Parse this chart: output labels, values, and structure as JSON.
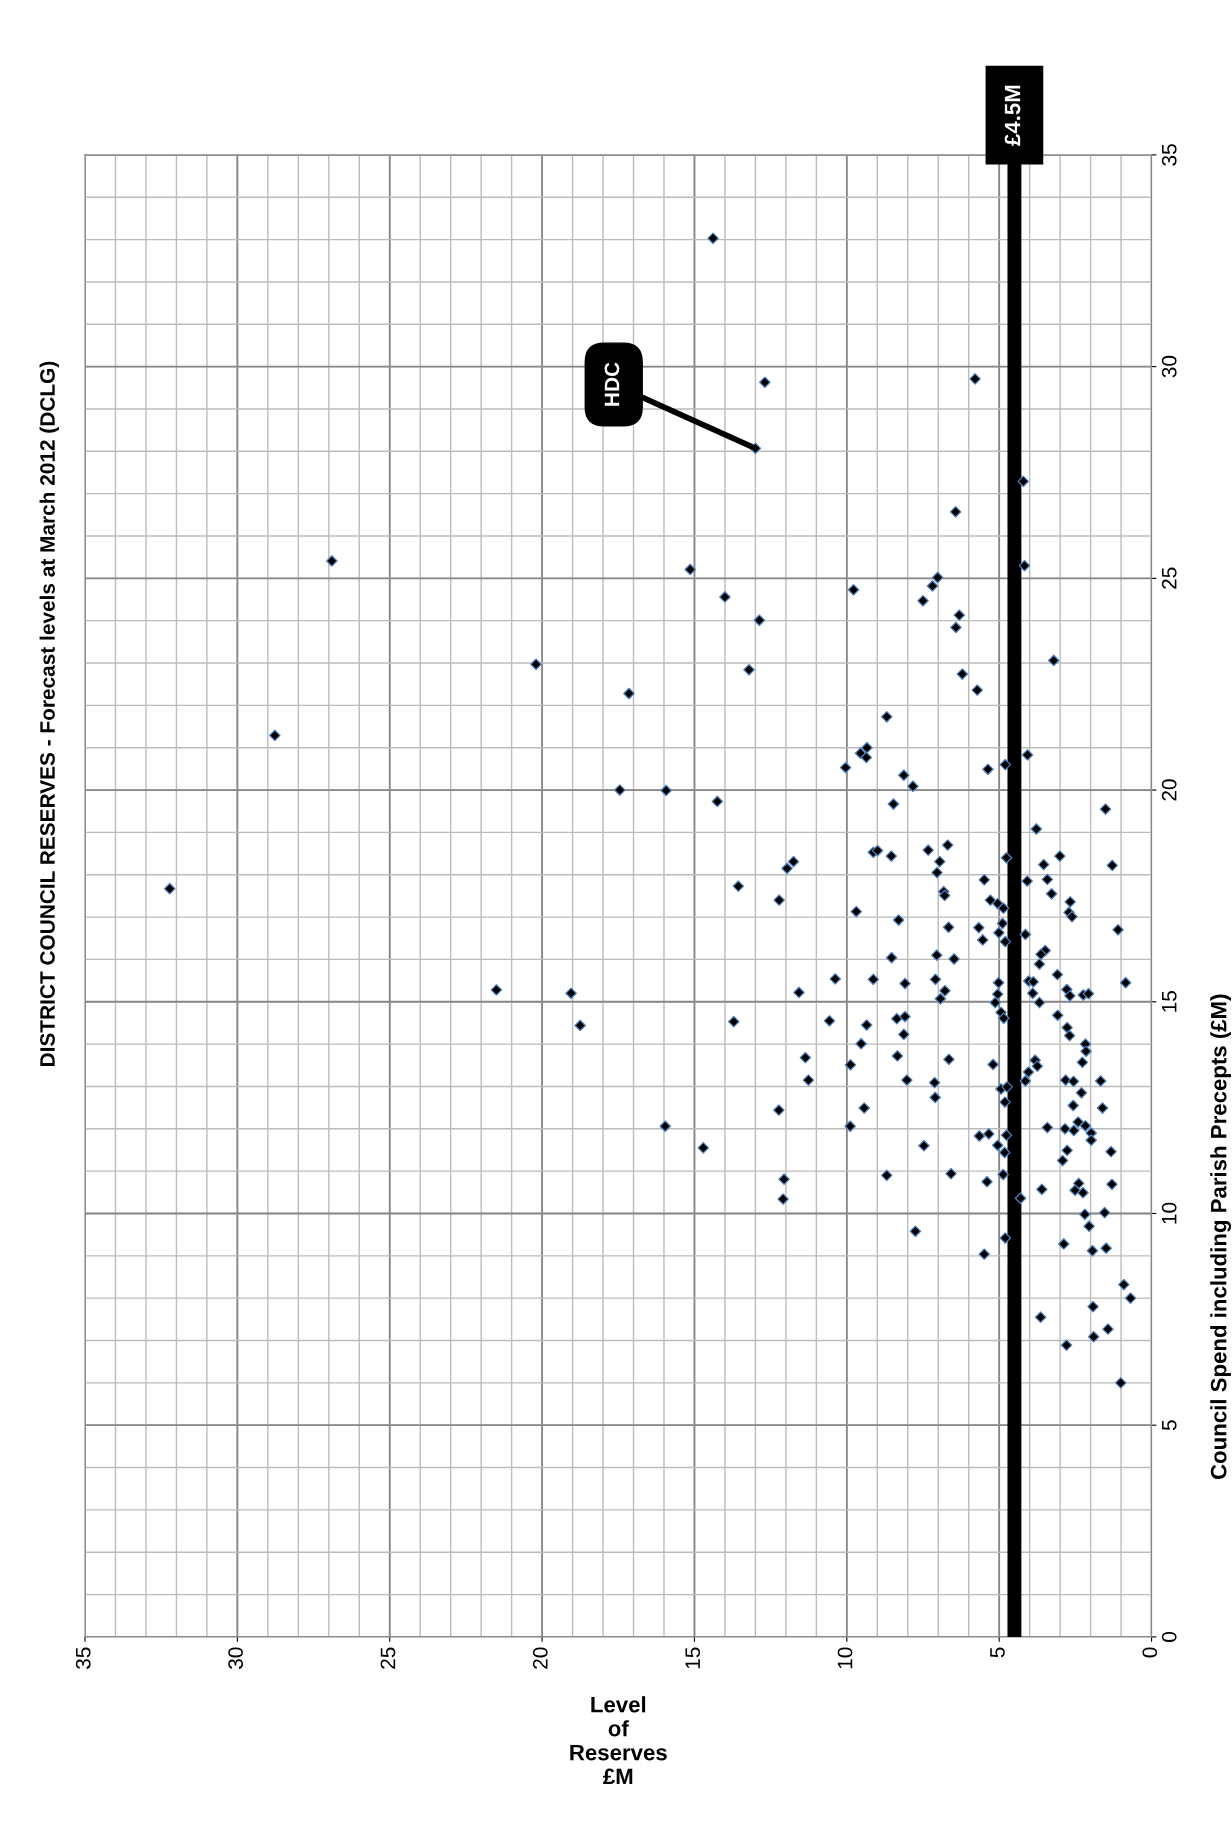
{
  "chart_data": {
    "type": "scatter",
    "title": "DISTRICT COUNCIL RESERVES - Forecast levels at March 2012 (DCLG)",
    "xlabel": "Level\nof\nReserves\n£M",
    "ylabel": "Council Spend including Parish Precepts (£M)",
    "xlim": [
      35,
      0
    ],
    "xticks": [
      35,
      30,
      25,
      20,
      15,
      10,
      5,
      0
    ],
    "ylim": [
      0,
      35
    ],
    "yticks": [
      0,
      5,
      10,
      15,
      20,
      25,
      30,
      35
    ],
    "grid": true,
    "marker": "diamond",
    "legend": false,
    "ref_lines": [
      {
        "axis": "x",
        "value": 4.5,
        "label": "£4.5M",
        "color": "#000000"
      }
    ],
    "annotations": [
      {
        "text": "HDC",
        "x": 13.0,
        "y": 28.07
      }
    ],
    "series": [
      {
        "color": "#000000",
        "x": [
          26.9,
          28.77,
          32.22,
          20.2,
          17.15,
          17.45,
          21.5,
          19.05,
          18.75,
          14.39,
          12.69,
          5.79,
          13.0,
          4.21,
          6.43,
          4.17,
          15.14,
          7.02,
          7.19,
          14.0,
          9.78,
          7.5,
          12.87,
          6.31,
          6.42,
          3.21,
          13.21,
          6.21,
          5.72,
          8.69,
          9.34,
          9.55,
          9.36,
          10.04,
          5.37,
          4.8,
          4.07,
          8.13,
          7.83,
          15.93,
          14.25,
          8.47,
          1.51,
          3.78,
          6.69,
          7.33,
          9.13,
          8.99,
          8.54,
          11.75,
          11.96,
          6.95,
          3.01,
          3.54,
          1.29,
          4.76,
          7.04,
          13.56,
          5.49,
          4.08,
          3.42,
          6.82,
          6.79,
          3.28,
          12.22,
          5.05,
          5.29,
          2.67,
          4.86,
          2.71,
          2.61,
          9.69,
          8.3,
          6.66,
          5.67,
          4.89,
          5.01,
          5.54,
          4.8,
          4.14,
          1.1,
          8.53,
          7.05,
          6.48,
          3.49,
          3.63,
          3.68,
          10.38,
          9.13,
          8.09,
          7.09,
          5.02,
          4.03,
          3.88,
          3.09,
          0.85,
          11.57,
          6.78,
          6.93,
          5.05,
          3.9,
          2.78,
          2.68,
          2.24,
          2.07,
          5.13,
          3.68,
          4.94,
          13.71,
          10.57,
          9.35,
          8.36,
          8.09,
          4.85,
          3.08,
          2.77,
          2.69,
          8.13,
          9.53,
          2.17,
          2.15,
          11.36,
          8.34,
          6.65,
          9.88,
          5.2,
          3.82,
          3.75,
          2.27,
          4.04,
          11.26,
          8.03,
          7.12,
          4.14,
          2.82,
          2.56,
          1.67,
          4.94,
          4.74,
          7.1,
          2.3,
          4.81,
          2.57,
          12.23,
          9.43,
          1.61,
          15.96,
          9.89,
          3.42,
          2.84,
          2.55,
          2.41,
          2.17,
          1.98,
          1.98,
          5.65,
          5.34,
          4.76,
          5.05,
          4.82,
          14.71,
          7.47,
          2.77,
          2.92,
          1.33,
          12.06,
          12.09,
          8.69,
          6.58,
          4.87,
          5.4,
          3.6,
          2.39,
          2.51,
          2.25,
          1.3,
          4.3,
          2.19,
          1.54,
          2.05,
          7.75,
          4.8,
          2.88,
          1.94,
          1.49,
          5.49,
          0.91,
          0.69,
          1.92,
          3.64,
          1.43,
          1.9,
          2.79,
          1.01
        ],
        "values": [
          25.41,
          21.29,
          17.67,
          22.97,
          22.28,
          20.0,
          15.28,
          15.2,
          14.44,
          33.03,
          29.63,
          29.71,
          28.07,
          27.29,
          26.57,
          25.3,
          25.21,
          25.02,
          24.82,
          24.56,
          24.73,
          24.47,
          24.01,
          24.13,
          23.84,
          23.06,
          22.84,
          22.74,
          22.36,
          21.73,
          21.0,
          20.87,
          20.77,
          20.53,
          20.49,
          20.6,
          20.83,
          20.35,
          20.09,
          19.99,
          19.73,
          19.67,
          19.55,
          19.08,
          18.7,
          18.58,
          18.53,
          18.57,
          18.44,
          18.31,
          18.15,
          18.31,
          18.44,
          18.24,
          18.22,
          18.4,
          18.05,
          17.73,
          17.88,
          17.85,
          17.89,
          17.6,
          17.51,
          17.55,
          17.4,
          17.32,
          17.4,
          17.36,
          17.21,
          17.11,
          17.01,
          17.13,
          16.93,
          16.76,
          16.75,
          16.85,
          16.63,
          16.46,
          16.42,
          16.59,
          16.7,
          16.04,
          16.1,
          16.01,
          16.21,
          16.12,
          15.89,
          15.54,
          15.53,
          15.43,
          15.53,
          15.45,
          15.49,
          15.47,
          15.64,
          15.45,
          15.22,
          15.26,
          15.07,
          15.18,
          15.2,
          15.29,
          15.14,
          15.16,
          15.19,
          14.98,
          14.98,
          14.75,
          14.53,
          14.55,
          14.45,
          14.6,
          14.65,
          14.61,
          14.68,
          14.39,
          14.2,
          14.23,
          14.01,
          14.0,
          13.83,
          13.68,
          13.72,
          13.64,
          13.51,
          13.52,
          13.62,
          13.48,
          13.57,
          13.34,
          13.15,
          13.15,
          13.09,
          13.13,
          13.15,
          13.12,
          13.13,
          12.94,
          12.99,
          12.74,
          12.85,
          12.63,
          12.55,
          12.44,
          12.49,
          12.49,
          12.06,
          12.06,
          12.03,
          12.0,
          11.96,
          12.16,
          12.07,
          11.9,
          11.73,
          11.83,
          11.88,
          11.85,
          11.61,
          11.44,
          11.55,
          11.6,
          11.49,
          11.25,
          11.46,
          10.81,
          10.34,
          10.9,
          10.94,
          10.92,
          10.75,
          10.57,
          10.71,
          10.55,
          10.49,
          10.69,
          10.36,
          9.98,
          10.02,
          9.7,
          9.58,
          9.42,
          9.28,
          9.12,
          9.18,
          9.04,
          8.32,
          8.0,
          7.8,
          7.55,
          7.27,
          7.09,
          6.89,
          6.0
        ]
      }
    ]
  }
}
